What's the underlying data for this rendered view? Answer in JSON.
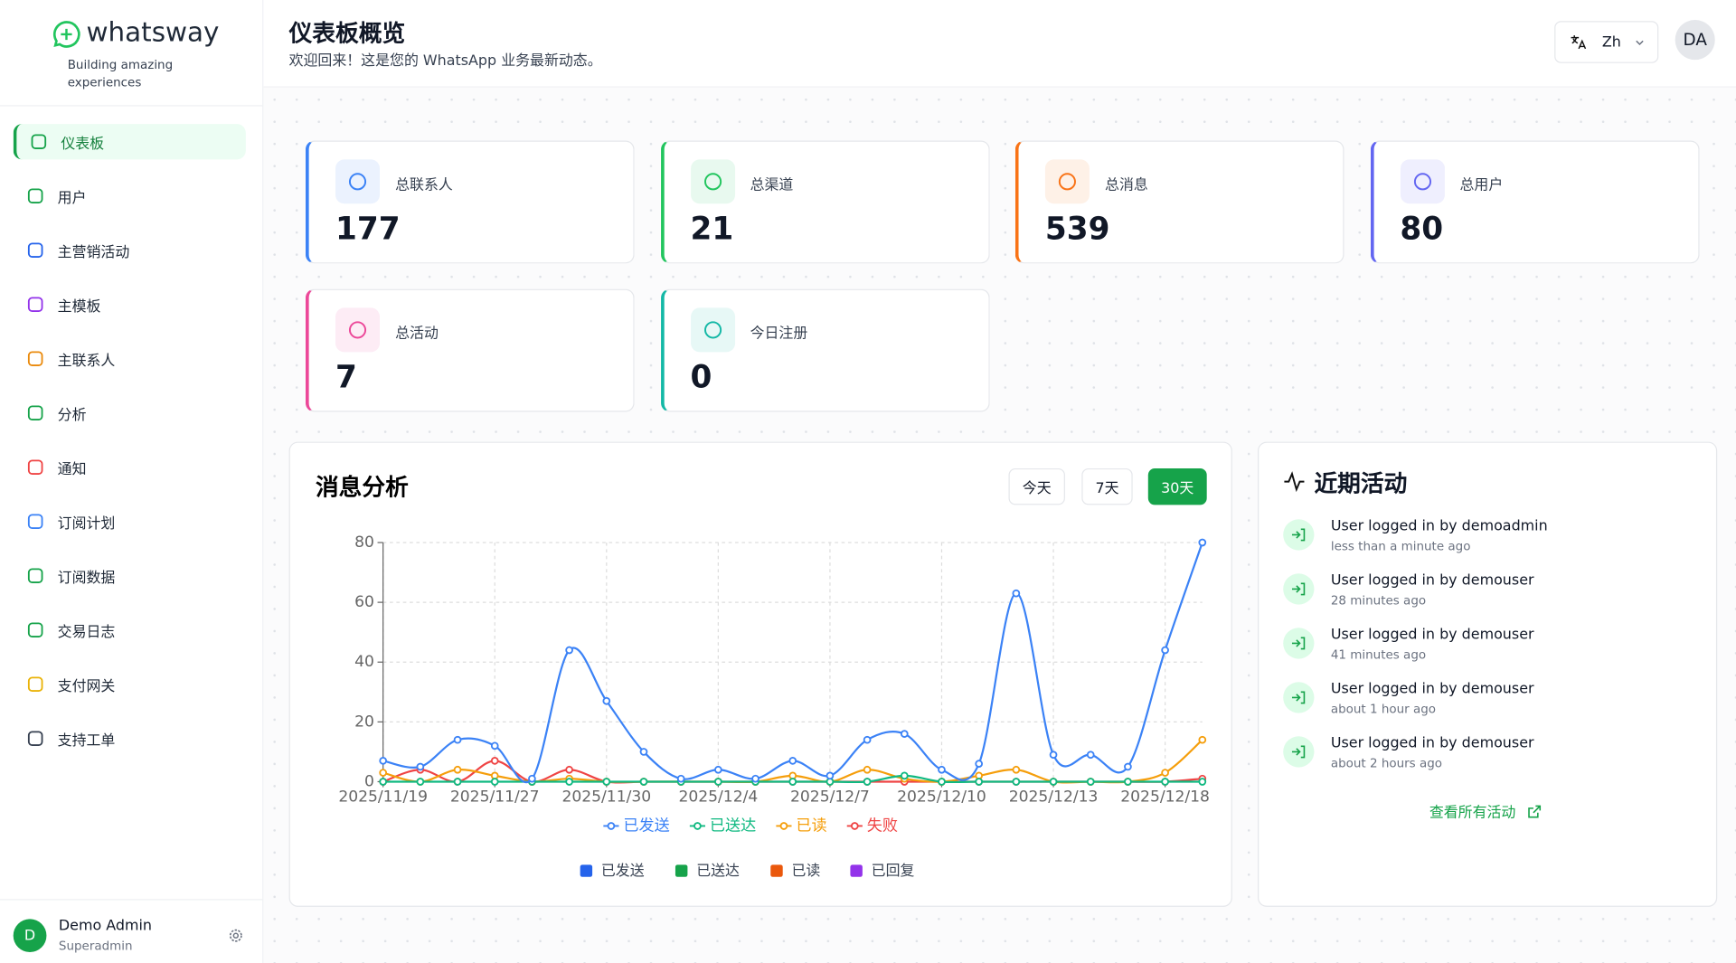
{
  "brand": {
    "name": "whatsway",
    "tagline": "Building amazing experiences"
  },
  "nav": [
    {
      "label": "仪表板",
      "color": "#16a34a"
    },
    {
      "label": "用户",
      "color": "#16a34a"
    },
    {
      "label": "主营销活动",
      "color": "#2563eb"
    },
    {
      "label": "主模板",
      "color": "#9333ea"
    },
    {
      "label": "主联系人",
      "color": "#ea8a0c"
    },
    {
      "label": "分析",
      "color": "#16a34a"
    },
    {
      "label": "通知",
      "color": "#ef4444"
    },
    {
      "label": "订阅计划",
      "color": "#3b82f6"
    },
    {
      "label": "订阅数据",
      "color": "#16a34a"
    },
    {
      "label": "交易日志",
      "color": "#16a34a"
    },
    {
      "label": "支付网关",
      "color": "#eab308"
    },
    {
      "label": "支持工单",
      "color": "#374151"
    }
  ],
  "user": {
    "avatar": "D",
    "name": "Demo Admin",
    "role": "Superadmin"
  },
  "header": {
    "title": "仪表板概览",
    "subtitle": "欢迎回来！这是您的 WhatsApp 业务最新动态。",
    "lang": "Zh",
    "avatar": "DA"
  },
  "stats": [
    {
      "label": "总联系人",
      "value": 177,
      "color": "#3b82f6"
    },
    {
      "label": "总渠道",
      "value": 21,
      "color": "#22c55e"
    },
    {
      "label": "总消息",
      "value": 539,
      "color": "#f97316"
    },
    {
      "label": "总用户",
      "value": 80,
      "color": "#6366f1"
    },
    {
      "label": "总活动",
      "value": 7,
      "color": "#ec4899"
    },
    {
      "label": "今日注册",
      "value": 0,
      "color": "#14b8a6"
    }
  ],
  "chart_data": {
    "type": "line",
    "title": "消息分析",
    "ranges": [
      "今天",
      "7天",
      "30天"
    ],
    "categories": [
      "2025/11/19",
      null,
      null,
      "2025/11/27",
      null,
      null,
      "2025/11/30",
      null,
      null,
      "2025/12/4",
      null,
      null,
      "2025/12/7",
      null,
      null,
      "2025/12/10",
      null,
      null,
      "2025/12/13",
      null,
      null,
      "2025/12/18",
      null
    ],
    "series": [
      {
        "name": "已发送",
        "color": "#3b82f6",
        "values": [
          7,
          5,
          14,
          12,
          1,
          44,
          27,
          10,
          1,
          4,
          1,
          7,
          2,
          14,
          16,
          4,
          6,
          63,
          9,
          9,
          5,
          44,
          80
        ]
      },
      {
        "name": "已送达",
        "color": "#10b981",
        "values": [
          0,
          0,
          0,
          0,
          0,
          0,
          0,
          0,
          0,
          0,
          0,
          0,
          0,
          0,
          2,
          0,
          0,
          0,
          0,
          0,
          0,
          0,
          0
        ]
      },
      {
        "name": "已读",
        "color": "#f59e0b",
        "values": [
          3,
          0,
          4,
          2,
          0,
          1,
          0,
          0,
          0,
          0,
          0,
          2,
          0,
          4,
          1,
          0,
          2,
          4,
          0,
          0,
          0,
          3,
          14
        ]
      },
      {
        "name": "失败",
        "color": "#ef4444",
        "values": [
          0,
          4,
          0,
          7,
          0,
          4,
          0,
          0,
          0,
          0,
          0,
          0,
          0,
          0,
          0,
          0,
          0,
          0,
          0,
          0,
          0,
          0,
          1
        ]
      }
    ],
    "ylim": [
      0,
      80
    ],
    "yticks": [
      0,
      20,
      40,
      60,
      80
    ],
    "grid": true,
    "legend2": [
      {
        "name": "已发送",
        "color": "#2563eb"
      },
      {
        "name": "已送达",
        "color": "#16a34a"
      },
      {
        "name": "已读",
        "color": "#ea580c"
      },
      {
        "name": "已回复",
        "color": "#9333ea"
      }
    ]
  },
  "activity": {
    "title": "近期活动",
    "items": [
      {
        "text": "User logged in by demoadmin",
        "time": "less than a minute ago"
      },
      {
        "text": "User logged in by demouser",
        "time": "28 minutes ago"
      },
      {
        "text": "User logged in by demouser",
        "time": "41 minutes ago"
      },
      {
        "text": "User logged in by demouser",
        "time": "about 1 hour ago"
      },
      {
        "text": "User logged in by demouser",
        "time": "about 2 hours ago"
      }
    ],
    "link": "查看所有活动"
  }
}
